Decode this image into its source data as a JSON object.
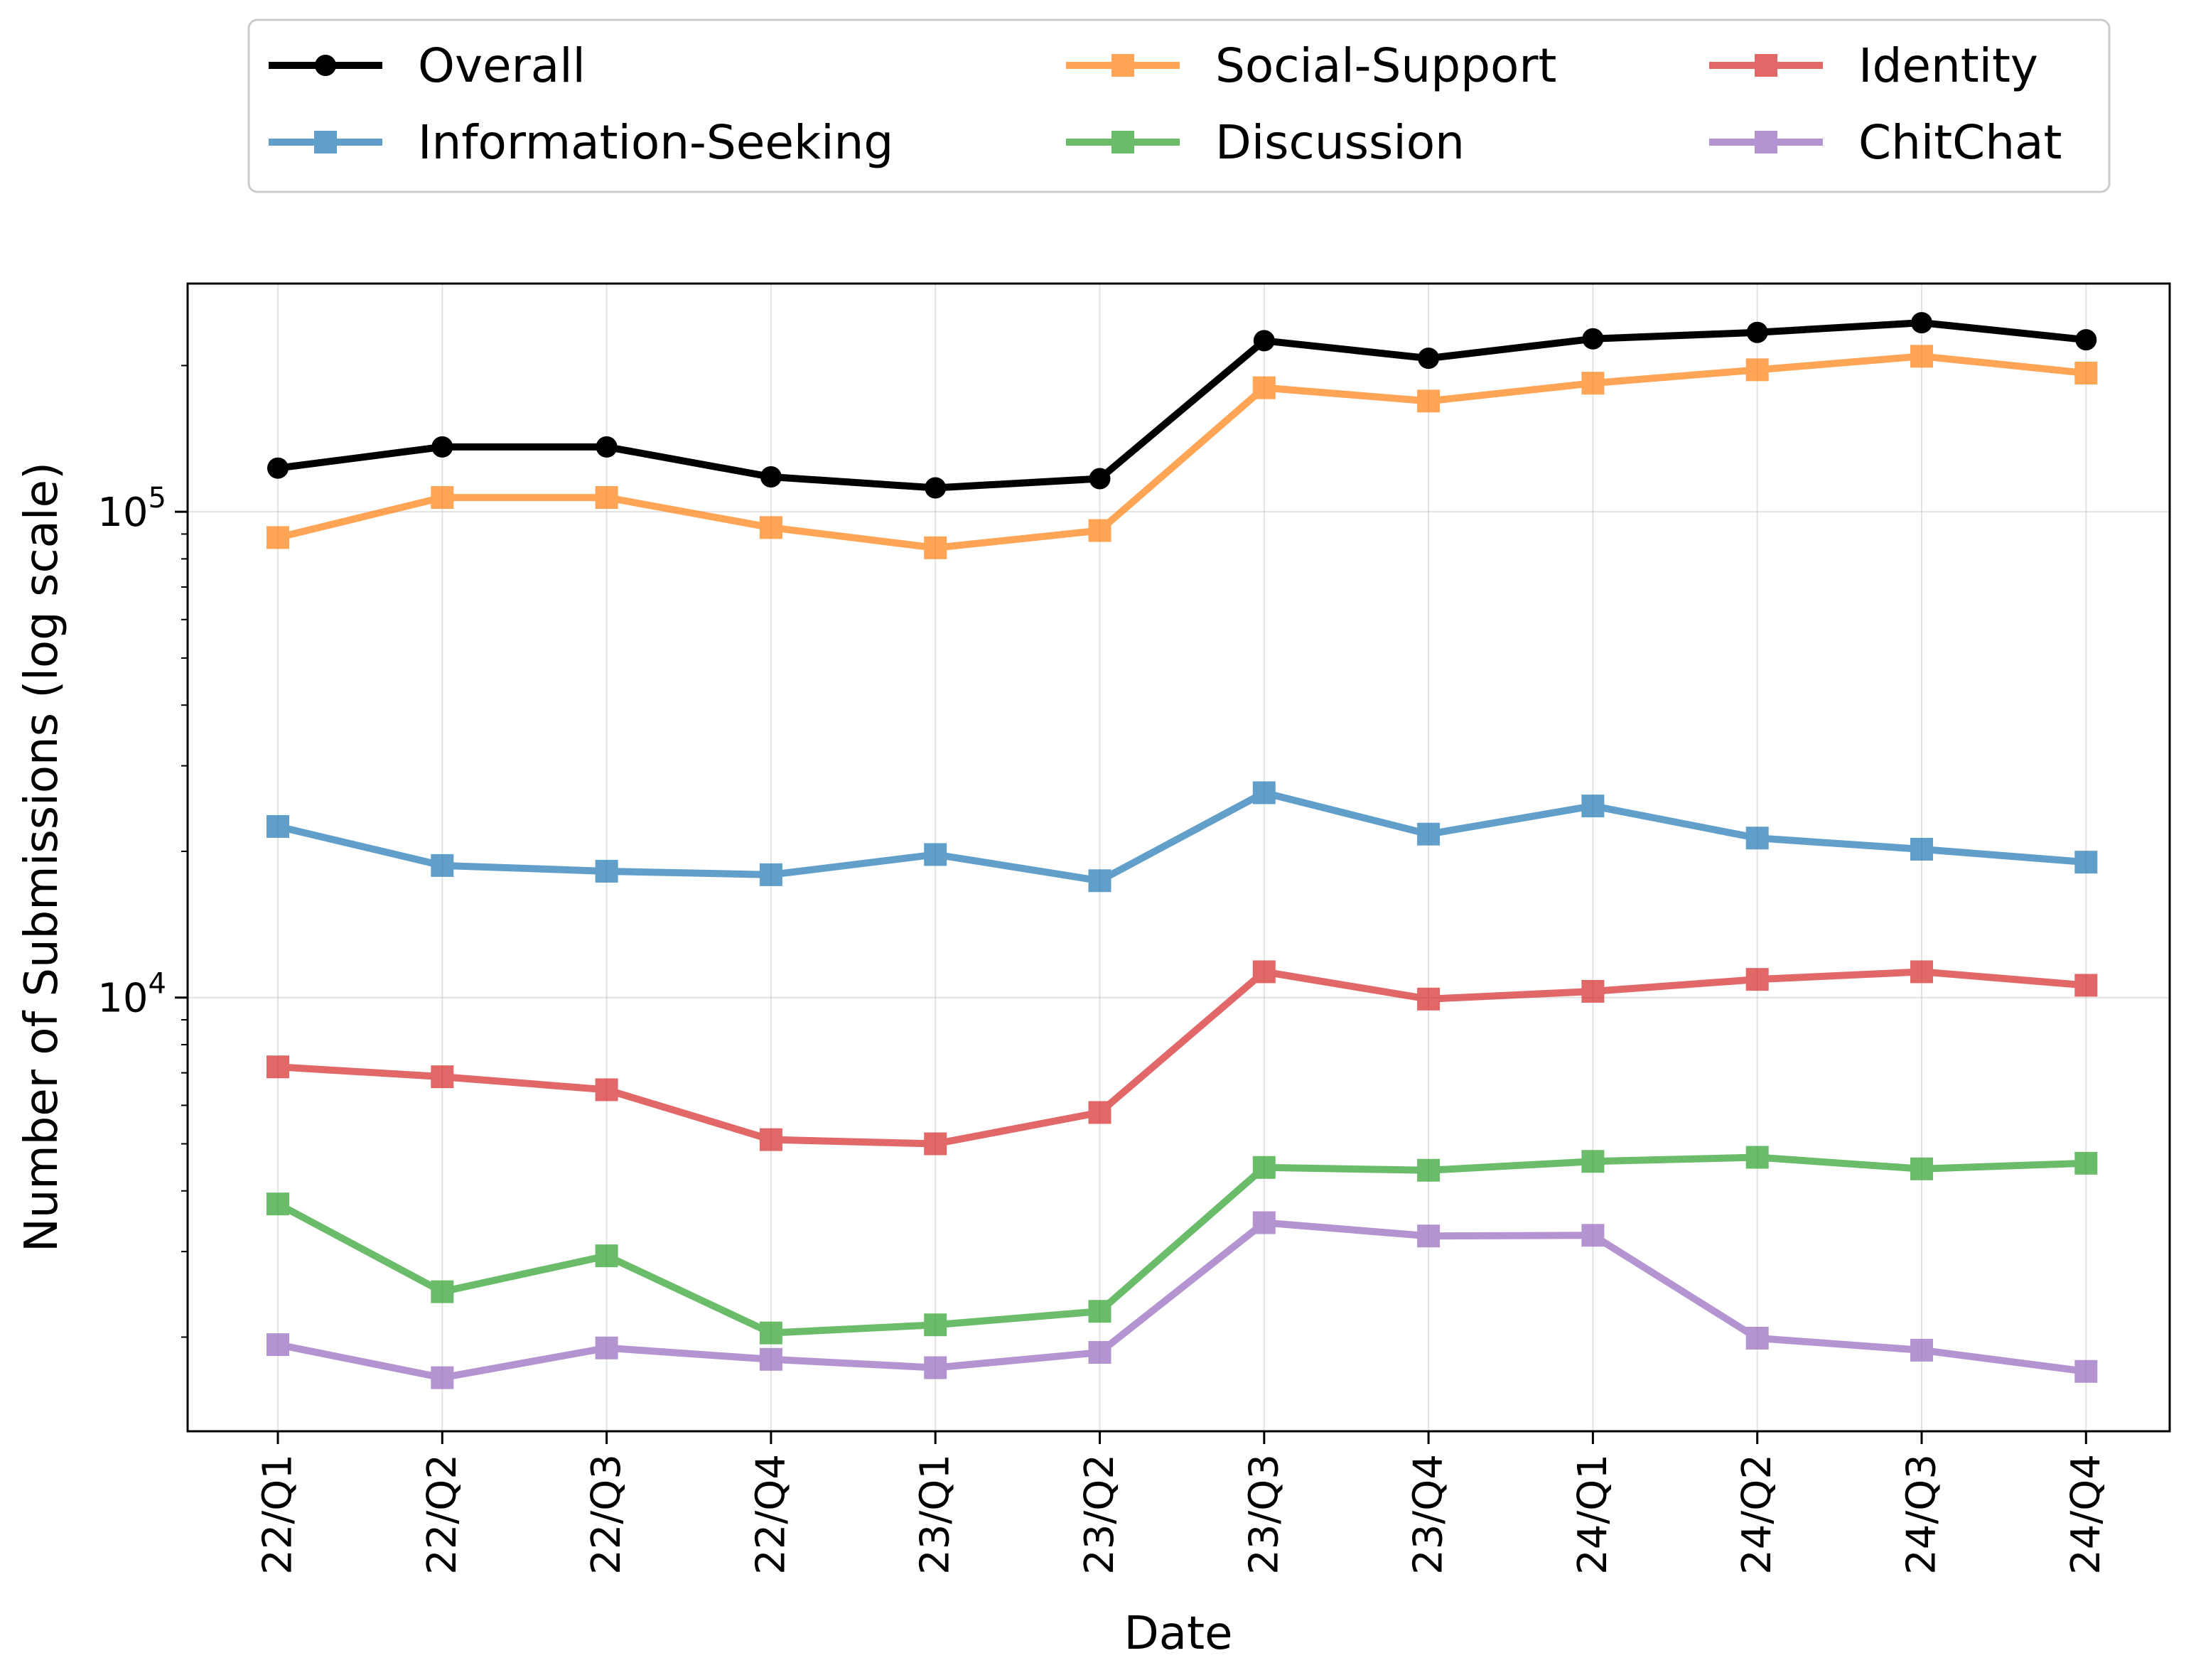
{
  "chart_data": {
    "type": "line",
    "xlabel": "Date",
    "ylabel": "Number of Submissions (log scale)",
    "yscale": "log",
    "ylim": [
      1280,
      295000
    ],
    "categories": [
      "22/Q1",
      "22/Q2",
      "22/Q3",
      "22/Q4",
      "23/Q1",
      "23/Q2",
      "23/Q3",
      "23/Q4",
      "24/Q1",
      "24/Q2",
      "24/Q3",
      "24/Q4"
    ],
    "yticks": [
      {
        "value": 10000,
        "base": "10",
        "exp": "4"
      },
      {
        "value": 100000,
        "base": "10",
        "exp": "5"
      }
    ],
    "grid": true,
    "legend_position": "top-center",
    "series": [
      {
        "name": "Overall",
        "color": "#000000",
        "marker": "circle",
        "opacity": 1.0,
        "values": [
          123000,
          136000,
          136000,
          118000,
          112000,
          117000,
          225000,
          207000,
          227000,
          234000,
          245000,
          226000
        ]
      },
      {
        "name": "Information-Seeking",
        "color": "#1f77b4",
        "marker": "square",
        "opacity": 0.7,
        "values": [
          22500,
          18700,
          18200,
          17900,
          19700,
          17400,
          26400,
          21700,
          24800,
          21300,
          20200,
          19000
        ]
      },
      {
        "name": "Social-Support",
        "color": "#ff7f0e",
        "marker": "square",
        "opacity": 0.7,
        "values": [
          88500,
          107000,
          107000,
          92800,
          84300,
          91500,
          180000,
          169000,
          184000,
          196000,
          209000,
          193000
        ]
      },
      {
        "name": "Discussion",
        "color": "#2ca02c",
        "marker": "square",
        "opacity": 0.7,
        "values": [
          3760,
          2480,
          2940,
          2040,
          2120,
          2260,
          4470,
          4410,
          4600,
          4690,
          4440,
          4560
        ]
      },
      {
        "name": "Identity",
        "color": "#d62728",
        "marker": "square",
        "opacity": 0.7,
        "values": [
          7200,
          6870,
          6460,
          5100,
          5000,
          5800,
          11300,
          9930,
          10300,
          10900,
          11300,
          10600
        ]
      },
      {
        "name": "ChitChat",
        "color": "#9467bd",
        "marker": "square",
        "opacity": 0.7,
        "values": [
          1930,
          1650,
          1900,
          1800,
          1730,
          1860,
          3440,
          3230,
          3240,
          1990,
          1880,
          1700
        ]
      }
    ]
  }
}
